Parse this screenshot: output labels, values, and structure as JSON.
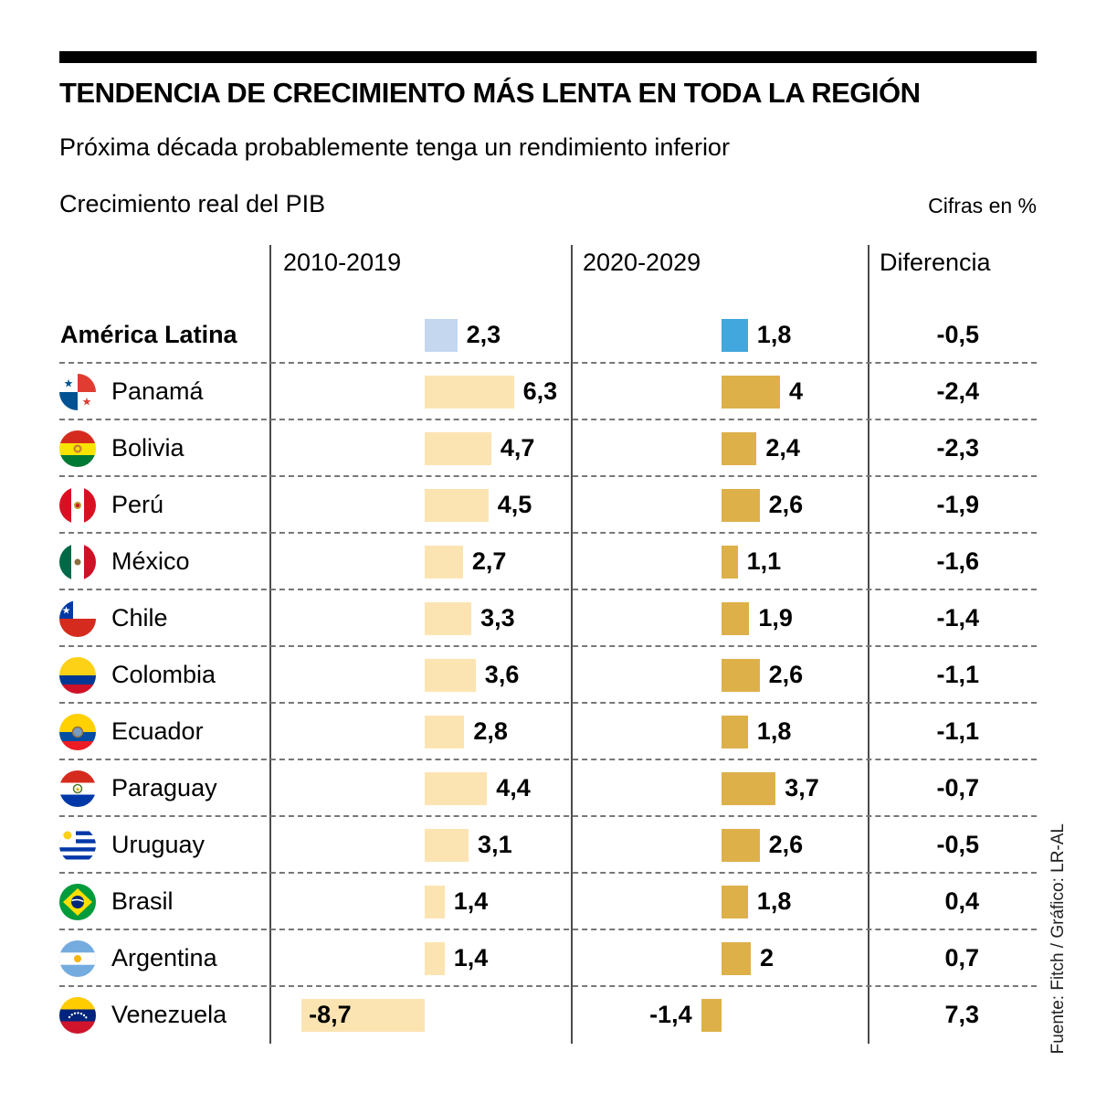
{
  "page": {
    "title": "TENDENCIA DE CRECIMIENTO MÁS LENTA EN TODA LA REGIÓN",
    "subtitle": "Próxima década probablemente tenga un rendimiento inferior",
    "measure_label": "Crecimiento real del PIB",
    "units_label": "Cifras en %",
    "source": "Fuente: Fitch / Gráfico: LR-AL"
  },
  "chart_data": {
    "type": "bar",
    "title": "Crecimiento real del PIB",
    "units": "%",
    "column_headers": [
      "2010-2019",
      "2020-2029",
      "Diferencia"
    ],
    "colors": {
      "region_2010": "#c5d7ef",
      "region_2020": "#41a7dd",
      "country_2010": "#fce4b2",
      "country_2020": "#ddb04a"
    },
    "rows": [
      {
        "name": "América Latina",
        "flag": null,
        "region": true,
        "v2010": 2.3,
        "v2020": 1.8,
        "diff": -0.5,
        "label_2010": "2,3",
        "label_2020": "1,8",
        "label_diff": "-0,5"
      },
      {
        "name": "Panamá",
        "flag": "panama",
        "v2010": 6.3,
        "v2020": 4,
        "diff": -2.4,
        "label_2010": "6,3",
        "label_2020": "4",
        "label_diff": "-2,4"
      },
      {
        "name": "Bolivia",
        "flag": "bolivia",
        "v2010": 4.7,
        "v2020": 2.4,
        "diff": -2.3,
        "label_2010": "4,7",
        "label_2020": "2,4",
        "label_diff": "-2,3"
      },
      {
        "name": "Perú",
        "flag": "peru",
        "v2010": 4.5,
        "v2020": 2.6,
        "diff": -1.9,
        "label_2010": "4,5",
        "label_2020": "2,6",
        "label_diff": "-1,9"
      },
      {
        "name": "México",
        "flag": "mexico",
        "v2010": 2.7,
        "v2020": 1.1,
        "diff": -1.6,
        "label_2010": "2,7",
        "label_2020": "1,1",
        "label_diff": "-1,6"
      },
      {
        "name": "Chile",
        "flag": "chile",
        "v2010": 3.3,
        "v2020": 1.9,
        "diff": -1.4,
        "label_2010": "3,3",
        "label_2020": "1,9",
        "label_diff": "-1,4"
      },
      {
        "name": "Colombia",
        "flag": "colombia",
        "v2010": 3.6,
        "v2020": 2.6,
        "diff": -1.1,
        "label_2010": "3,6",
        "label_2020": "2,6",
        "label_diff": "-1,1"
      },
      {
        "name": "Ecuador",
        "flag": "ecuador",
        "v2010": 2.8,
        "v2020": 1.8,
        "diff": -1.1,
        "label_2010": "2,8",
        "label_2020": "1,8",
        "label_diff": "-1,1"
      },
      {
        "name": "Paraguay",
        "flag": "paraguay",
        "v2010": 4.4,
        "v2020": 3.7,
        "diff": -0.7,
        "label_2010": "4,4",
        "label_2020": "3,7",
        "label_diff": "-0,7"
      },
      {
        "name": "Uruguay",
        "flag": "uruguay",
        "v2010": 3.1,
        "v2020": 2.6,
        "diff": -0.5,
        "label_2010": "3,1",
        "label_2020": "2,6",
        "label_diff": "-0,5"
      },
      {
        "name": "Brasil",
        "flag": "brasil",
        "v2010": 1.4,
        "v2020": 1.8,
        "diff": 0.4,
        "label_2010": "1,4",
        "label_2020": "1,8",
        "label_diff": "0,4"
      },
      {
        "name": "Argentina",
        "flag": "argentina",
        "v2010": 1.4,
        "v2020": 2,
        "diff": 0.7,
        "label_2010": "1,4",
        "label_2020": "2",
        "label_diff": "0,7"
      },
      {
        "name": "Venezuela",
        "flag": "venezuela",
        "v2010": -8.7,
        "v2020": -1.4,
        "diff": 7.3,
        "label_2010": "-8,7",
        "label_2020": "-1,4",
        "label_diff": "7,3"
      }
    ]
  }
}
